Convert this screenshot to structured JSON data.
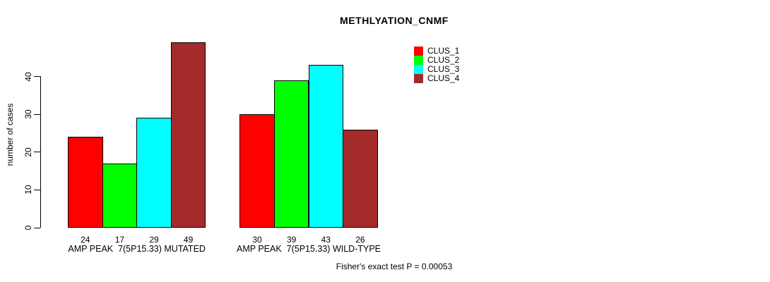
{
  "title": "METHLYATION_CNMF",
  "footer": "Fisher's exact test P = 0.00053",
  "colors": {
    "clus1": "#FF0000",
    "clus2": "#00FF00",
    "clus3": "#00FFFF",
    "clus4": "#A52A2A",
    "axis": "#000000",
    "background": "#FFFFFF"
  },
  "chart_data": {
    "type": "bar",
    "title": "METHLYATION_CNMF",
    "xlabel": "",
    "ylabel": "number of cases",
    "ylim": [
      0,
      49
    ],
    "yticks": [
      0,
      10,
      20,
      30,
      40
    ],
    "grid": false,
    "legend_position": "top-right",
    "categories": [
      "AMP PEAK  7(5P15.33) MUTATED",
      "AMP PEAK  7(5P15.33) WILD-TYPE"
    ],
    "series": [
      {
        "name": "CLUS_1",
        "color": "#FF0000",
        "values": [
          24,
          30
        ]
      },
      {
        "name": "CLUS_2",
        "color": "#00FF00",
        "values": [
          17,
          39
        ]
      },
      {
        "name": "CLUS_3",
        "color": "#00FFFF",
        "values": [
          29,
          43
        ]
      },
      {
        "name": "CLUS_4",
        "color": "#A52A2A",
        "values": [
          49,
          26
        ]
      }
    ],
    "bar_value_labels": [
      [
        24,
        17,
        29,
        49
      ],
      [
        30,
        39,
        43,
        26
      ]
    ],
    "annotation": "Fisher's exact test P = 0.00053"
  }
}
